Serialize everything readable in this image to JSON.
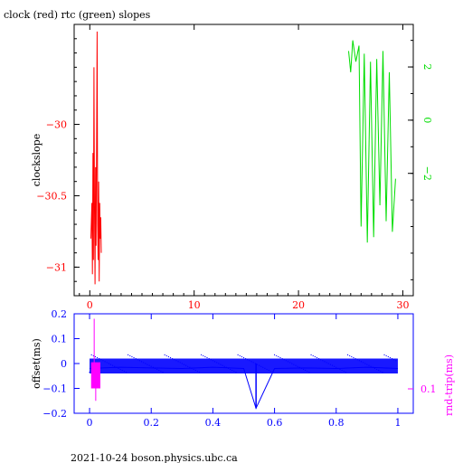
{
  "footer": "2021-10-24 boson.physics.ubc.ca",
  "colors": {
    "red": "#ff0000",
    "green": "#00dd00",
    "blue": "#0000ff",
    "magenta": "#ff00ff",
    "axis": "#000000"
  },
  "chart_data": [
    {
      "type": "line",
      "title": "clock (red) rtc (green) slopes",
      "ylabel": "clockslope",
      "xlim": [
        -1.5,
        31
      ],
      "ylim": [
        -31.2,
        -29.3
      ],
      "xticks": [
        "0",
        "10",
        "20",
        "30"
      ],
      "yticks_left": [
        "-30",
        "-30.5",
        "-31"
      ],
      "yticks_right": [
        "2",
        "0",
        "-2"
      ],
      "y2lim": [
        -6.6,
        3.6
      ],
      "series": [
        {
          "color": "red",
          "axis": "left",
          "x": [
            0.1,
            0.2,
            0.25,
            0.3,
            0.35,
            0.4,
            0.45,
            0.5,
            0.55,
            0.6,
            0.65,
            0.7,
            0.75,
            0.8,
            0.85,
            0.9,
            0.95,
            1.0,
            1.05,
            1.1
          ],
          "y": [
            -30.8,
            -30.55,
            -31.05,
            -30.2,
            -30.95,
            -29.6,
            -30.6,
            -31.12,
            -30.3,
            -30.85,
            -30.2,
            -29.35,
            -30.7,
            -30.95,
            -30.4,
            -31.1,
            -30.55,
            -30.8,
            -30.65,
            -30.9
          ]
        },
        {
          "color": "green",
          "axis": "right",
          "x": [
            24.8,
            25.0,
            25.2,
            25.5,
            25.8,
            26.0,
            26.3,
            26.6,
            26.9,
            27.2,
            27.5,
            27.8,
            28.1,
            28.4,
            28.7,
            29.0,
            29.3
          ],
          "y": [
            2.6,
            1.8,
            3.0,
            2.2,
            2.8,
            -4.0,
            2.5,
            -4.6,
            2.2,
            -4.4,
            2.3,
            -3.2,
            2.6,
            -3.8,
            1.8,
            -4.2,
            -2.2
          ]
        }
      ]
    },
    {
      "type": "scatter",
      "ylabel": "offset(ms)",
      "y2label": "rnd-trip(ms)",
      "xlim": [
        -0.05,
        1.05
      ],
      "ylim": [
        -0.2,
        0.2
      ],
      "xticks": [
        "0",
        "0.2",
        "0.4",
        "0.6",
        "0.8",
        "1"
      ],
      "yticks_left": [
        "0.2",
        "0.1",
        "0",
        "-0.1",
        "-0.2"
      ],
      "yticks_right": [
        "0.1"
      ],
      "series": [
        {
          "color": "blue",
          "x": [
            0.0,
            0.1,
            0.2,
            0.3,
            0.4,
            0.5,
            0.54,
            0.6,
            0.7,
            0.8,
            0.9,
            1.0
          ],
          "y": [
            -0.02,
            -0.015,
            -0.018,
            -0.02,
            -0.015,
            -0.02,
            -0.18,
            -0.02,
            -0.018,
            -0.02,
            -0.015,
            -0.02
          ]
        },
        {
          "color": "magenta",
          "x": [
            0.01,
            0.015,
            0.02,
            0.025,
            0.03
          ],
          "y": [
            -0.05,
            0.18,
            -0.15,
            0.0,
            -0.08
          ]
        }
      ]
    }
  ]
}
